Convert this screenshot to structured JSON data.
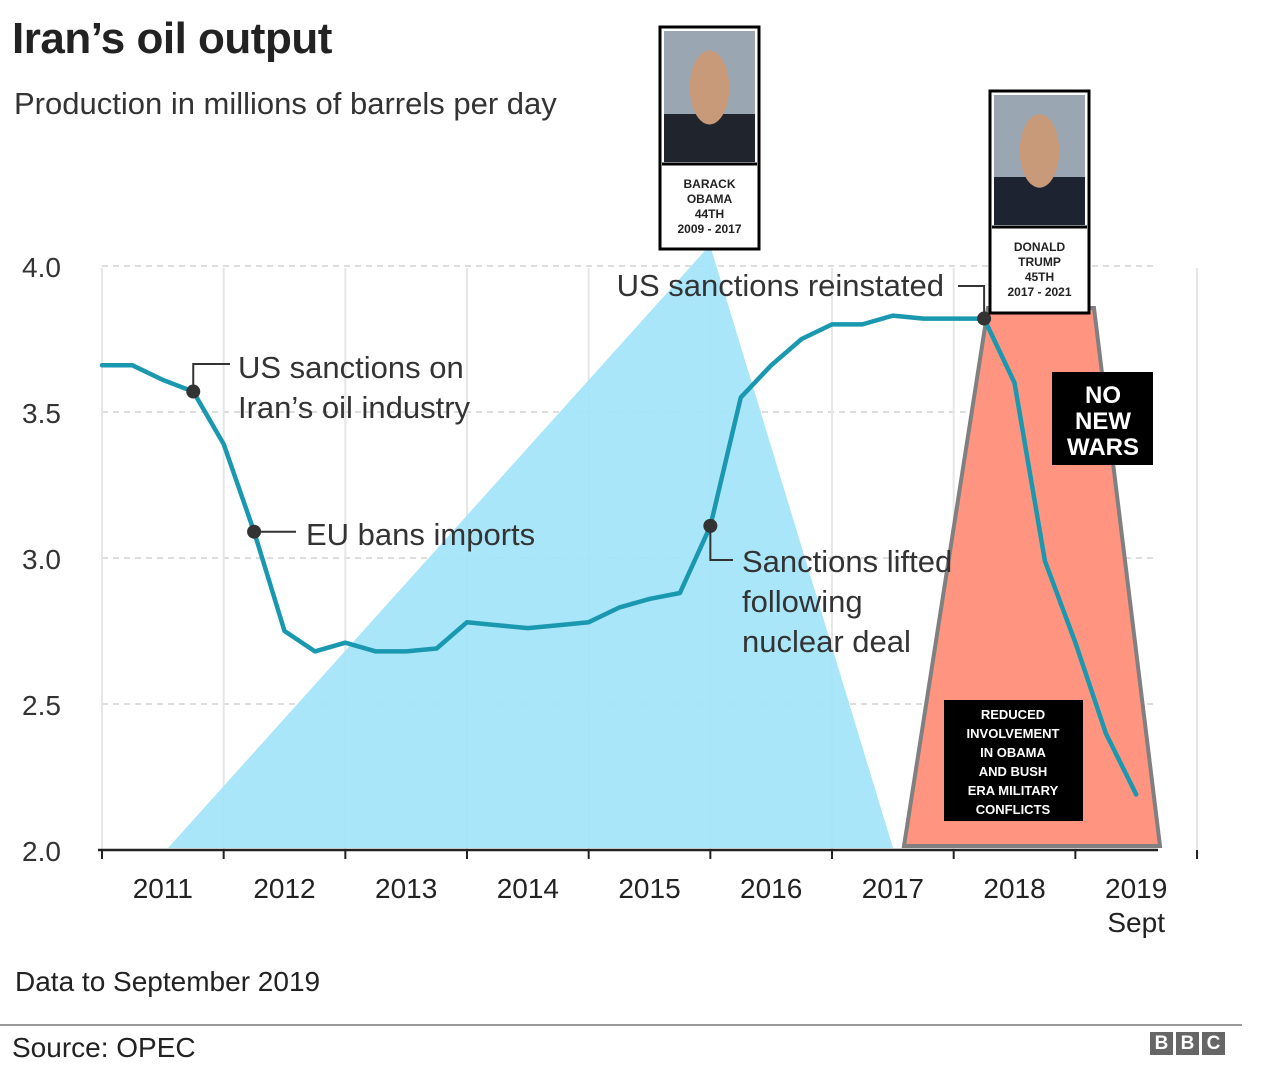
{
  "header": {
    "title": "Iran’s oil output",
    "subtitle": "Production in millions of barrels per day"
  },
  "footer": {
    "note": "Data to September 2019",
    "source": "Source: OPEC",
    "logo_letters": [
      "B",
      "B",
      "C"
    ]
  },
  "colors": {
    "line": "#1a98b0",
    "obama_triangle": "#a3e4f8",
    "trump_trapezoid": "#ff9580",
    "marker": "#333333",
    "grid": "#dddddd",
    "box": "#000000"
  },
  "chart_data": {
    "type": "line",
    "title": "Iran’s oil output",
    "subtitle": "Production in millions of barrels per day",
    "ylim": [
      2.0,
      4.0
    ],
    "yticks": [
      "2.0",
      "2.5",
      "3.0",
      "3.5",
      "4.0"
    ],
    "xlim": [
      2010.5,
      2019.75
    ],
    "xticks": [
      {
        "value": 2011,
        "label": "2011"
      },
      {
        "value": 2012,
        "label": "2012"
      },
      {
        "value": 2013,
        "label": "2013"
      },
      {
        "value": 2014,
        "label": "2014"
      },
      {
        "value": 2015,
        "label": "2015"
      },
      {
        "value": 2016,
        "label": "2016"
      },
      {
        "value": 2017,
        "label": "2017"
      },
      {
        "value": 2018,
        "label": "2018"
      },
      {
        "value": 2019,
        "label": "2019",
        "sublabel": "Sept"
      }
    ],
    "grid": true,
    "series": [
      {
        "points": [
          [
            2010.5,
            3.66
          ],
          [
            2010.75,
            3.66
          ],
          [
            2011.0,
            3.61
          ],
          [
            2011.25,
            3.57
          ],
          [
            2011.5,
            3.39
          ],
          [
            2011.75,
            3.09
          ],
          [
            2012.0,
            2.75
          ],
          [
            2012.25,
            2.68
          ],
          [
            2012.5,
            2.71
          ],
          [
            2012.75,
            2.68
          ],
          [
            2013.0,
            2.68
          ],
          [
            2013.25,
            2.69
          ],
          [
            2013.5,
            2.78
          ],
          [
            2013.75,
            2.77
          ],
          [
            2014.0,
            2.76
          ],
          [
            2014.25,
            2.77
          ],
          [
            2014.5,
            2.78
          ],
          [
            2014.75,
            2.83
          ],
          [
            2015.0,
            2.86
          ],
          [
            2015.25,
            2.88
          ],
          [
            2015.5,
            3.11
          ],
          [
            2015.75,
            3.55
          ],
          [
            2016.0,
            3.66
          ],
          [
            2016.25,
            3.75
          ],
          [
            2016.5,
            3.8
          ],
          [
            2016.75,
            3.8
          ],
          [
            2017.0,
            3.83
          ],
          [
            2017.25,
            3.82
          ],
          [
            2017.5,
            3.82
          ],
          [
            2017.75,
            3.82
          ],
          [
            2018.0,
            3.6
          ],
          [
            2018.25,
            2.99
          ],
          [
            2018.5,
            2.71
          ],
          [
            2018.75,
            2.4
          ],
          [
            2019.0,
            2.19
          ]
        ]
      }
    ],
    "annotations": [
      {
        "x": 2011.25,
        "y": 3.57,
        "lines": [
          "US sanctions on",
          "Iran’s oil industry"
        ]
      },
      {
        "x": 2011.75,
        "y": 3.09,
        "lines": [
          "EU bans imports"
        ]
      },
      {
        "x": 2015.5,
        "y": 3.11,
        "lines": [
          "Sanctions lifted",
          "following",
          "nuclear deal"
        ]
      },
      {
        "x": 2017.75,
        "y": 3.82,
        "lines": [
          "US sanctions reinstated"
        ]
      }
    ]
  },
  "overlays": {
    "obama": {
      "caption_lines": [
        "BARACK",
        "OBAMA",
        "44TH",
        "2009 - 2017"
      ],
      "photo_icon": "portrait-photo"
    },
    "trump": {
      "caption_lines": [
        "DONALD",
        "TRUMP",
        "45TH",
        "2017 - 2021"
      ],
      "photo_icon": "portrait-photo"
    },
    "no_new_wars": {
      "lines": [
        "NO",
        "NEW",
        "WARS"
      ]
    },
    "reduced_involvement": {
      "lines": [
        "REDUCED",
        "INVOLVEMENT",
        "IN OBAMA",
        "AND BUSH",
        "ERA MILITARY",
        "CONFLICTS"
      ]
    }
  }
}
